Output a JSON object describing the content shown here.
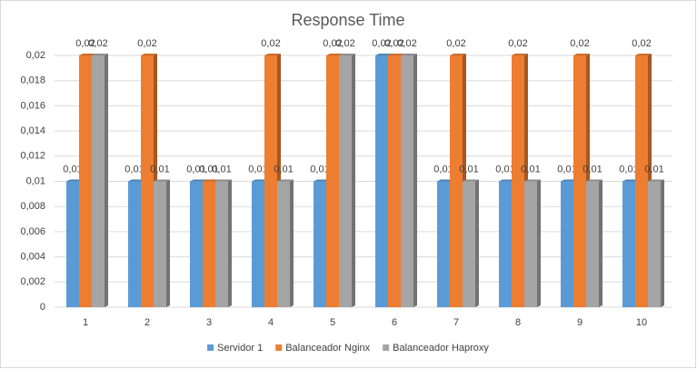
{
  "chart_data": {
    "type": "bar",
    "title": "Response Time",
    "categories": [
      "1",
      "2",
      "3",
      "4",
      "5",
      "6",
      "7",
      "8",
      "9",
      "10"
    ],
    "series": [
      {
        "name": "Servidor 1",
        "color": "#5b9bd5",
        "values": [
          0.01,
          0.01,
          0.01,
          0.01,
          0.01,
          0.02,
          0.01,
          0.01,
          0.01,
          0.01
        ],
        "value_labels": [
          "0,01",
          "0,01",
          "0,01",
          "0,01",
          "0,01",
          "0,02",
          "0,01",
          "0,01",
          "0,01",
          "0,01"
        ]
      },
      {
        "name": "Balanceador Nginx",
        "color": "#ed7d31",
        "values": [
          0.02,
          0.02,
          0.01,
          0.02,
          0.02,
          0.02,
          0.02,
          0.02,
          0.02,
          0.02
        ],
        "value_labels": [
          "0,02",
          "0,02",
          "0,01",
          "0,02",
          "0,02",
          "0,02",
          "0,02",
          "0,02",
          "0,02",
          "0,02"
        ]
      },
      {
        "name": "Balanceador Haproxy",
        "color": "#a5a5a5",
        "values": [
          0.02,
          0.01,
          0.01,
          0.01,
          0.02,
          0.02,
          0.01,
          0.01,
          0.01,
          0.01
        ],
        "value_labels": [
          "0,02",
          "0,01",
          "0,01",
          "0,01",
          "0,02",
          "0,02",
          "0,01",
          "0,01",
          "0,01",
          "0,01"
        ]
      }
    ],
    "ylim": [
      0,
      0.02
    ],
    "yticks": [
      0,
      {
        "value": 0.002,
        "label": "0,002"
      },
      {
        "value": 0.004,
        "label": "0,004"
      },
      {
        "value": 0.006,
        "label": "0,006"
      },
      {
        "value": 0.008,
        "label": "0,008"
      },
      {
        "value": 0.01,
        "label": "0,01"
      },
      {
        "value": 0.012,
        "label": "0,012"
      },
      {
        "value": 0.014,
        "label": "0,014"
      },
      {
        "value": 0.016,
        "label": "0,016"
      },
      {
        "value": 0.018,
        "label": "0,018"
      },
      {
        "value": 0.02,
        "label": "0,02"
      }
    ],
    "grid": true,
    "legend": "bottom"
  }
}
